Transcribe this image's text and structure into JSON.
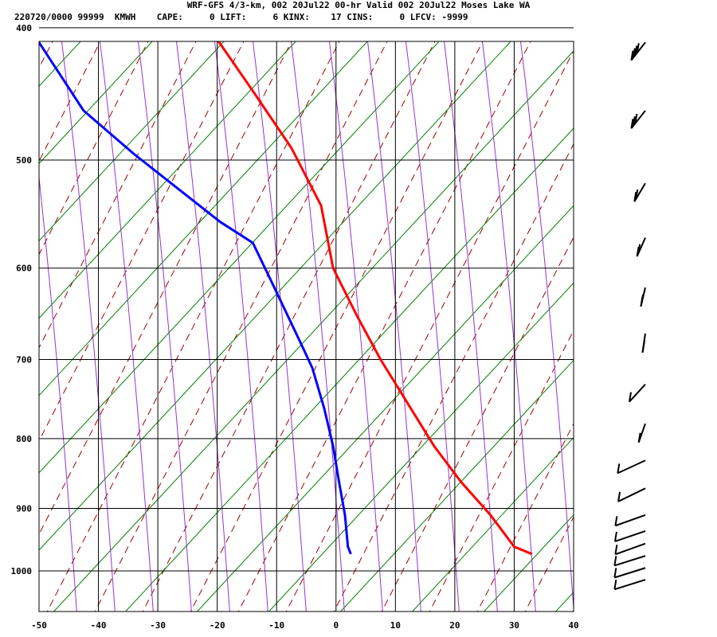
{
  "header": {
    "title": "WRF-GFS 4/3-km, 002 20Jul22 00-hr Valid 002 20Jul22 Moses Lake WA",
    "info": "220720/0000 99999  KMWH    CAPE:     0 LIFT:     6 KINX:    17 CINS:     0 LFCV: -9999"
  },
  "colors": {
    "temperature": "#ff0000",
    "dewpoint": "#0000ff",
    "dry_adiabat": "#a00000",
    "moist_adiabat": "#9933cc",
    "mixing_ratio": "#008000",
    "grid": "#000000"
  },
  "chart_data": {
    "type": "line",
    "title": "",
    "xlabel": "",
    "ylabel": "",
    "x_ticks": [
      "-50",
      "-40",
      "-30",
      "-20",
      "-10",
      "0",
      "10",
      "20",
      "30",
      "40"
    ],
    "y_ticks": [
      "400",
      "500",
      "600",
      "700",
      "800",
      "900",
      "1000"
    ],
    "xlim": [
      -50,
      40
    ],
    "ylim": [
      1040,
      400
    ],
    "y_scale": "log-pressure",
    "grid": true,
    "series": [
      {
        "key": "temperature",
        "points": [
          [
            -20.5,
            405
          ],
          [
            -14,
            445
          ],
          [
            -7.5,
            490
          ],
          [
            -2.5,
            540
          ],
          [
            -0.5,
            600
          ],
          [
            3.5,
            650
          ],
          [
            7.5,
            700
          ],
          [
            16.5,
            810
          ],
          [
            21,
            860
          ],
          [
            26,
            910
          ],
          [
            30,
            960
          ],
          [
            33,
            972
          ]
        ]
      },
      {
        "key": "dewpoint",
        "points": [
          [
            -50,
            410
          ],
          [
            -42.5,
            460
          ],
          [
            -34,
            495
          ],
          [
            -19.5,
            555
          ],
          [
            -14,
            575
          ],
          [
            -10,
            625
          ],
          [
            -6,
            680
          ],
          [
            -4,
            710
          ],
          [
            -2,
            760
          ],
          [
            -0.5,
            810
          ],
          [
            0.5,
            860
          ],
          [
            1.5,
            910
          ],
          [
            2,
            960
          ],
          [
            2.5,
            972
          ]
        ]
      }
    ]
  },
  "wind_barbs": [
    {
      "pressure": 410,
      "barbs": 4,
      "dir_deg": 244
    },
    {
      "pressure": 460,
      "barbs": 3,
      "dir_deg": 244
    },
    {
      "pressure": 520,
      "barbs": 2,
      "dir_deg": 250
    },
    {
      "pressure": 570,
      "barbs": 2,
      "dir_deg": 255
    },
    {
      "pressure": 620,
      "barbs": 2,
      "dir_deg": 262
    },
    {
      "pressure": 670,
      "barbs": 2,
      "dir_deg": 265
    },
    {
      "pressure": 730,
      "barbs": 1,
      "dir_deg": 240
    },
    {
      "pressure": 780,
      "barbs": 1,
      "dir_deg": 258
    },
    {
      "pressure": 830,
      "barbs": 1,
      "dir_deg": 210
    },
    {
      "pressure": 870,
      "barbs": 1,
      "dir_deg": 212
    },
    {
      "pressure": 910,
      "barbs": 1,
      "dir_deg": 200
    },
    {
      "pressure": 935,
      "barbs": 1,
      "dir_deg": 198
    },
    {
      "pressure": 955,
      "barbs": 1,
      "dir_deg": 200
    },
    {
      "pressure": 975,
      "barbs": 1,
      "dir_deg": 195
    },
    {
      "pressure": 995,
      "barbs": 1,
      "dir_deg": 195
    },
    {
      "pressure": 1015,
      "barbs": 1,
      "dir_deg": 195
    }
  ]
}
